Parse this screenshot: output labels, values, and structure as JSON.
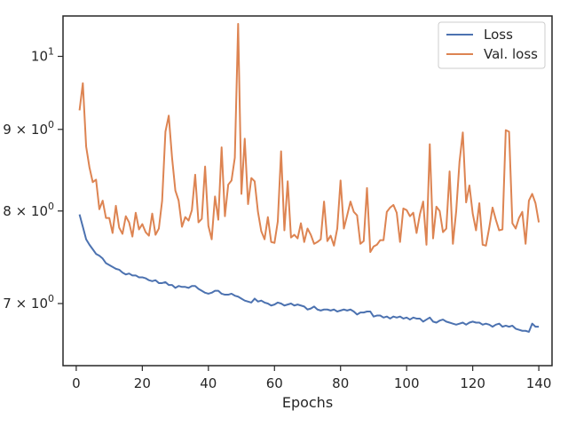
{
  "chart_data": {
    "type": "line",
    "title": "",
    "xlabel": "Epochs",
    "ylabel": "",
    "xlim": [
      -4,
      144
    ],
    "ylim": [
      6.4,
      10.6
    ],
    "yscale": "log",
    "grid": false,
    "legend_position": "top-right",
    "xticks": [
      {
        "value": 0,
        "label": "0"
      },
      {
        "value": 20,
        "label": "20"
      },
      {
        "value": 40,
        "label": "40"
      },
      {
        "value": 60,
        "label": "60"
      },
      {
        "value": 80,
        "label": "80"
      },
      {
        "value": 100,
        "label": "100"
      },
      {
        "value": 120,
        "label": "120"
      },
      {
        "value": 140,
        "label": "140"
      }
    ],
    "yticks": [
      {
        "value": 7,
        "base": "7",
        "mult": "×",
        "pow": "10",
        "exp": "0"
      },
      {
        "value": 8,
        "base": "8",
        "mult": "×",
        "pow": "10",
        "exp": "0"
      },
      {
        "value": 9,
        "base": "9",
        "mult": "×",
        "pow": "10",
        "exp": "0"
      },
      {
        "value": 10,
        "base": "",
        "mult": "",
        "pow": "10",
        "exp": "1"
      }
    ],
    "x_start": 1,
    "x_step": 1,
    "series": [
      {
        "name": "Loss",
        "color": "#4c72b0",
        "values": [
          7.96,
          7.82,
          7.68,
          7.62,
          7.57,
          7.52,
          7.5,
          7.47,
          7.42,
          7.4,
          7.38,
          7.36,
          7.35,
          7.32,
          7.3,
          7.31,
          7.29,
          7.29,
          7.27,
          7.27,
          7.26,
          7.24,
          7.23,
          7.24,
          7.21,
          7.21,
          7.22,
          7.19,
          7.19,
          7.16,
          7.18,
          7.17,
          7.17,
          7.16,
          7.18,
          7.18,
          7.15,
          7.13,
          7.11,
          7.1,
          7.11,
          7.13,
          7.13,
          7.1,
          7.09,
          7.09,
          7.1,
          7.08,
          7.07,
          7.05,
          7.03,
          7.02,
          7.01,
          7.05,
          7.02,
          7.03,
          7.01,
          7.0,
          6.98,
          6.99,
          7.01,
          7.0,
          6.98,
          6.99,
          7.0,
          6.98,
          6.99,
          6.98,
          6.97,
          6.94,
          6.95,
          6.97,
          6.94,
          6.93,
          6.94,
          6.94,
          6.93,
          6.94,
          6.92,
          6.93,
          6.94,
          6.93,
          6.94,
          6.92,
          6.89,
          6.91,
          6.91,
          6.92,
          6.92,
          6.87,
          6.88,
          6.88,
          6.86,
          6.87,
          6.85,
          6.87,
          6.86,
          6.87,
          6.85,
          6.86,
          6.84,
          6.86,
          6.85,
          6.85,
          6.82,
          6.84,
          6.86,
          6.82,
          6.81,
          6.83,
          6.84,
          6.82,
          6.81,
          6.8,
          6.79,
          6.8,
          6.81,
          6.79,
          6.81,
          6.82,
          6.81,
          6.81,
          6.79,
          6.8,
          6.79,
          6.77,
          6.79,
          6.8,
          6.77,
          6.78,
          6.77,
          6.78,
          6.75,
          6.74,
          6.73,
          6.73,
          6.72,
          6.8,
          6.77,
          6.77
        ]
      },
      {
        "name": "Val. loss",
        "color": "#dd8452",
        "values": [
          9.25,
          9.62,
          8.78,
          8.52,
          8.34,
          8.37,
          8.02,
          8.12,
          7.92,
          7.92,
          7.75,
          8.06,
          7.81,
          7.74,
          7.94,
          7.87,
          7.71,
          7.98,
          7.79,
          7.85,
          7.76,
          7.72,
          7.97,
          7.73,
          7.8,
          8.12,
          8.97,
          9.18,
          8.64,
          8.24,
          8.12,
          7.82,
          7.93,
          7.89,
          8.01,
          8.43,
          7.87,
          7.91,
          8.53,
          7.83,
          7.68,
          8.17,
          7.9,
          8.77,
          7.94,
          8.31,
          8.36,
          8.64,
          10.48,
          8.2,
          8.88,
          8.08,
          8.39,
          8.35,
          7.99,
          7.77,
          7.68,
          7.93,
          7.65,
          7.64,
          7.88,
          8.72,
          7.78,
          8.35,
          7.7,
          7.73,
          7.69,
          7.86,
          7.65,
          7.8,
          7.73,
          7.63,
          7.65,
          7.68,
          8.11,
          7.66,
          7.72,
          7.61,
          7.8,
          8.36,
          7.8,
          7.95,
          8.11,
          7.99,
          7.95,
          7.63,
          7.66,
          8.27,
          7.54,
          7.6,
          7.62,
          7.67,
          7.67,
          7.99,
          8.04,
          8.07,
          7.98,
          7.65,
          8.03,
          8.01,
          7.94,
          7.98,
          7.75,
          7.96,
          8.11,
          7.62,
          8.81,
          7.69,
          8.05,
          8.0,
          7.76,
          7.8,
          8.47,
          7.63,
          8.0,
          8.59,
          8.96,
          8.1,
          8.3,
          7.97,
          7.78,
          8.09,
          7.62,
          7.61,
          7.81,
          8.04,
          7.9,
          7.78,
          7.79,
          8.99,
          8.97,
          7.86,
          7.8,
          7.92,
          7.99,
          7.63,
          8.12,
          8.2,
          8.09,
          7.87
        ]
      }
    ]
  }
}
